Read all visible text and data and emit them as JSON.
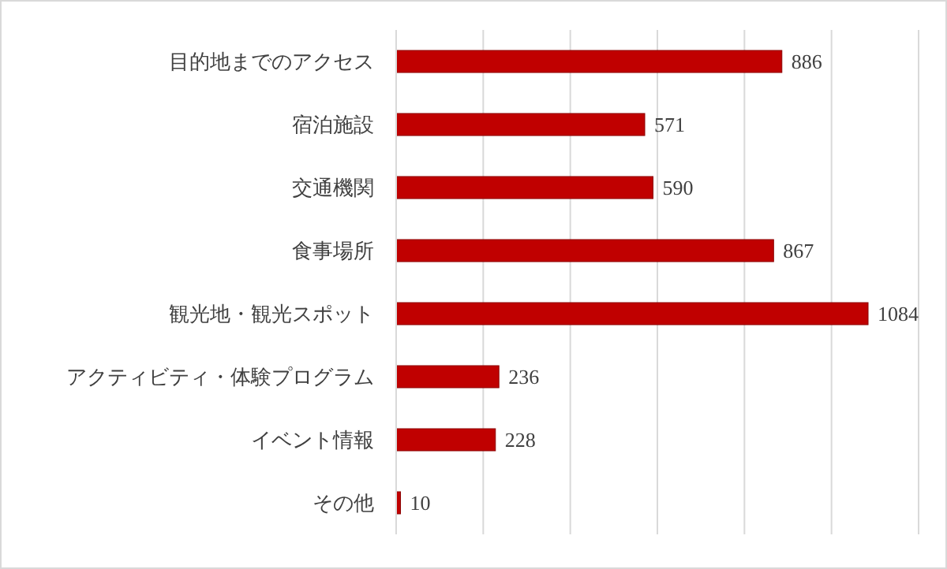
{
  "chart_data": {
    "type": "bar",
    "orientation": "horizontal",
    "categories": [
      "目的地までのアクセス",
      "宿泊施設",
      "交通機関",
      "食事場所",
      "観光地・観光スポット",
      "アクティビティ・体験プログラム",
      "イベント情報",
      "その他"
    ],
    "values": [
      886,
      571,
      590,
      867,
      1084,
      236,
      228,
      10
    ],
    "color": "#c00000",
    "xlim": [
      0,
      1200
    ],
    "xticks": [
      {
        "value": 0,
        "label": null
      },
      {
        "value": 200,
        "label": null
      },
      {
        "value": 400,
        "label": null
      },
      {
        "value": 600,
        "label": null
      },
      {
        "value": 800,
        "label": null
      },
      {
        "value": 1000,
        "label": null
      },
      {
        "value": 1200,
        "label": null
      }
    ],
    "tick_labels": "y",
    "grid": "x",
    "data_labels": true
  }
}
